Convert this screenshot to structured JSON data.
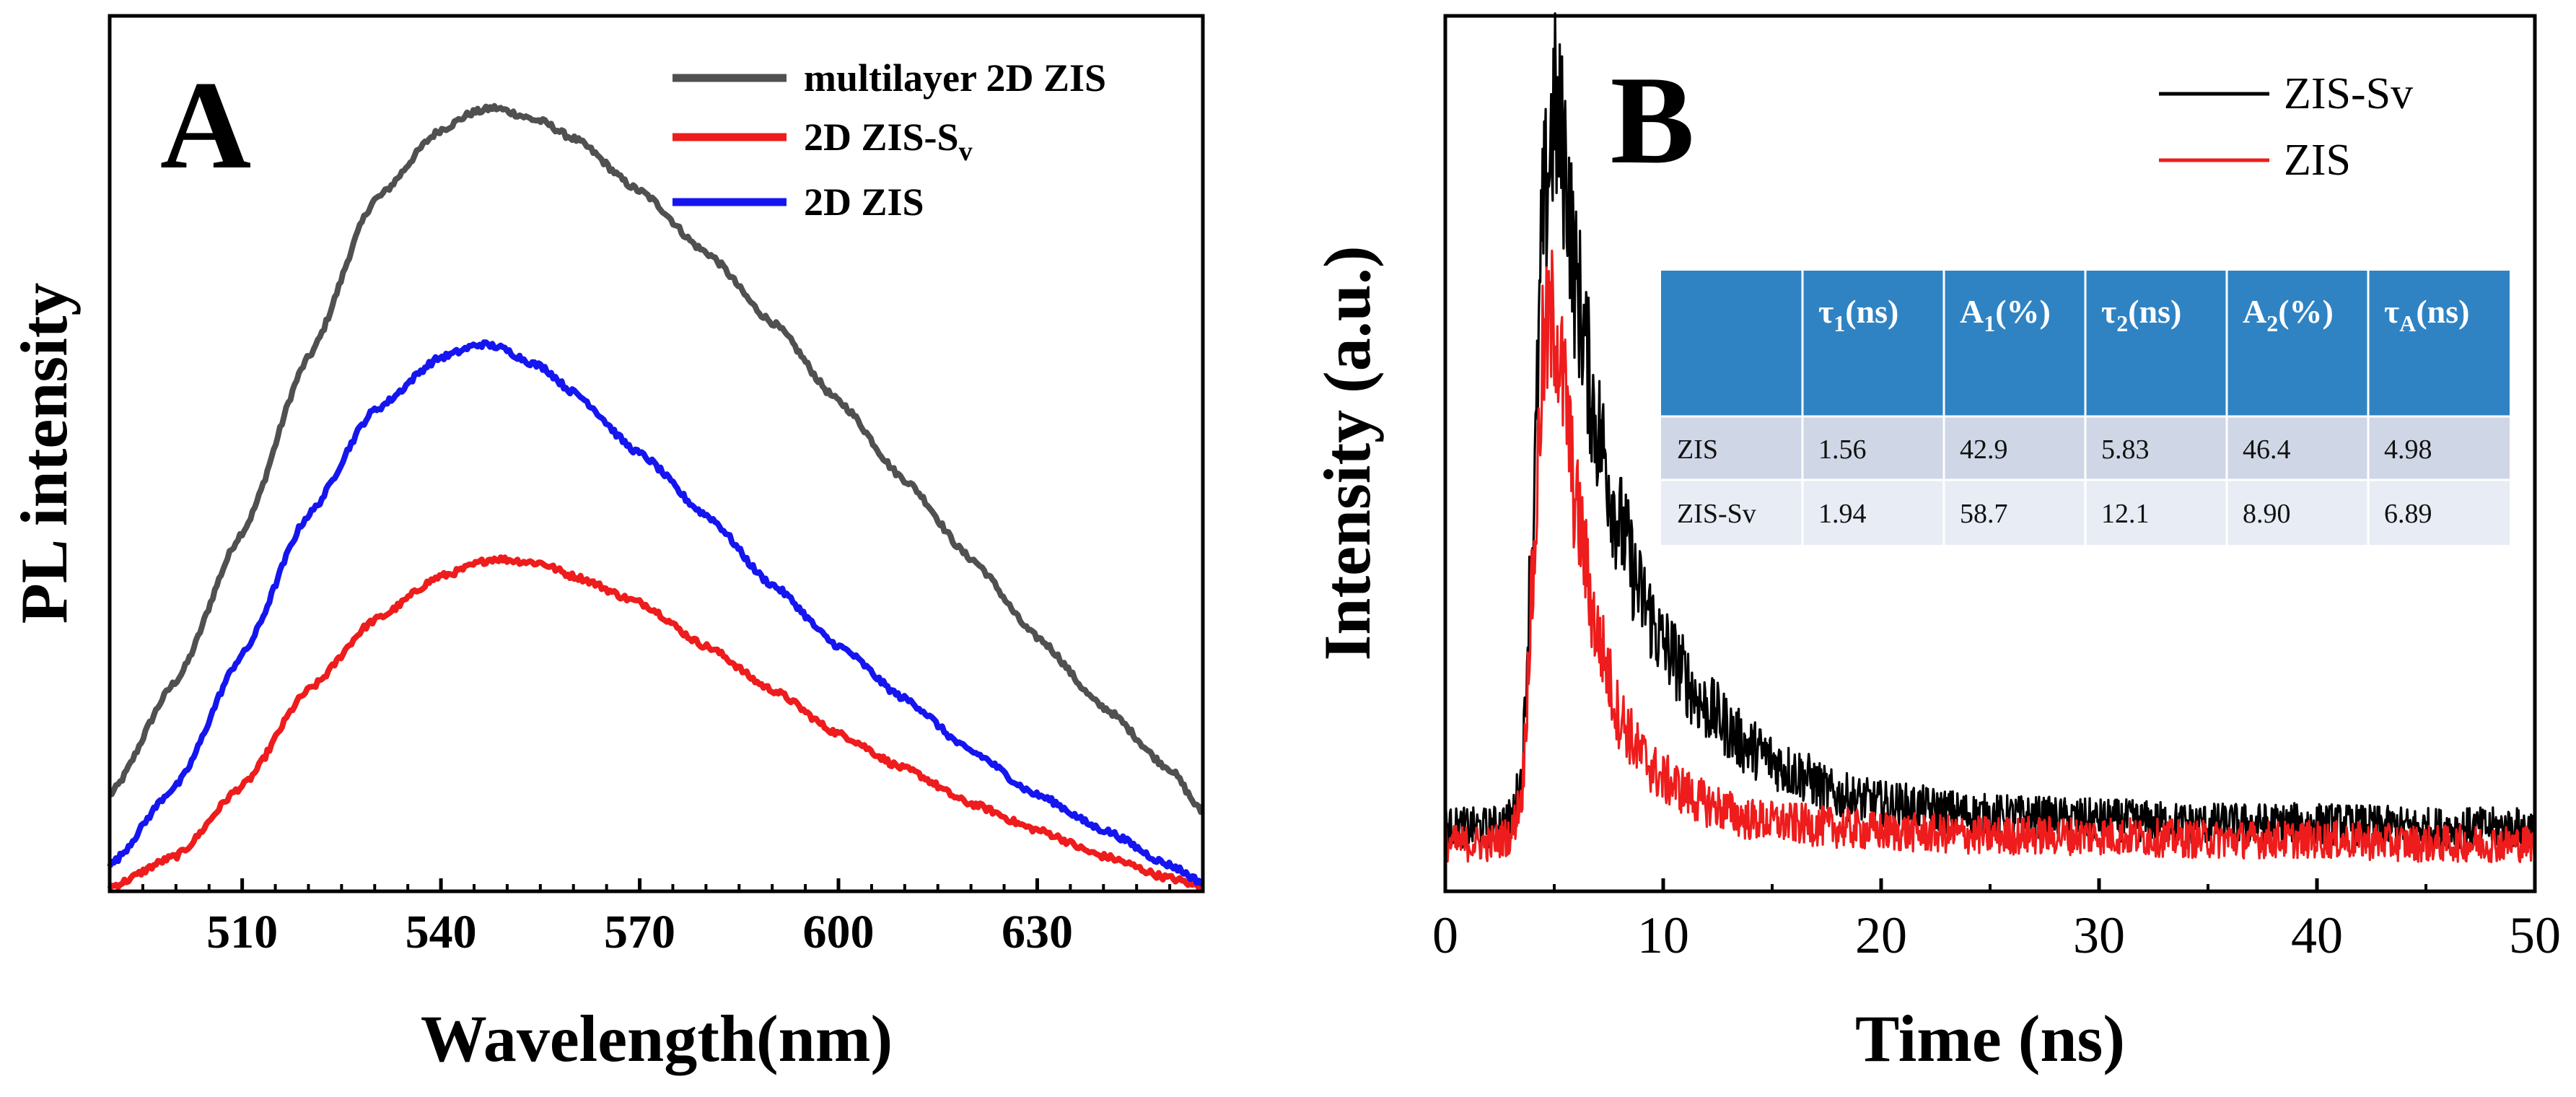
{
  "chart_data": [
    {
      "type": "line",
      "panel_label": "A",
      "xlabel": "Wavelength(nm)",
      "ylabel": "PL intensity",
      "xlim": [
        490,
        655
      ],
      "ylim": [
        0,
        100
      ],
      "xticks": [
        510,
        540,
        570,
        600,
        630
      ],
      "yticks_visible": false,
      "legend_position": "top-right",
      "series": [
        {
          "name": "multilayer 2D ZIS",
          "color": "#505050",
          "x": [
            490,
            500,
            510,
            520,
            530,
            540,
            545,
            548,
            555,
            560,
            570,
            580,
            590,
            600,
            610,
            620,
            630,
            640,
            650,
            655
          ],
          "y": [
            11,
            24,
            41,
            61,
            79,
            87,
            89,
            89.5,
            88,
            86,
            80,
            73,
            65,
            56,
            47,
            38,
            29,
            21,
            14,
            9
          ]
        },
        {
          "name": "2D ZIS-Sv",
          "name_main": "2D ZIS-S",
          "name_sub": "v",
          "color": "#ee1c1c",
          "x": [
            490,
            500,
            510,
            520,
            530,
            540,
            548,
            555,
            560,
            570,
            580,
            590,
            600,
            610,
            620,
            630,
            640,
            650,
            655
          ],
          "y": [
            0.5,
            4,
            12,
            23,
            31,
            36,
            38,
            37.5,
            36,
            33,
            28,
            23,
            18,
            14,
            10,
            7,
            4,
            1.5,
            0.5
          ]
        },
        {
          "name": "2D ZIS",
          "color": "#1515f0",
          "x": [
            490,
            500,
            510,
            520,
            530,
            540,
            546,
            548,
            555,
            560,
            570,
            580,
            590,
            600,
            610,
            620,
            630,
            640,
            650,
            655
          ],
          "y": [
            3,
            12,
            27,
            43,
            55,
            61,
            62.5,
            62.3,
            60,
            57,
            50,
            43,
            35,
            28,
            22,
            16,
            11,
            7,
            3,
            1
          ]
        }
      ]
    },
    {
      "type": "line",
      "panel_label": "B",
      "xlabel": "Time (ns)",
      "ylabel": "Intensity (a.u.)",
      "xlim": [
        0,
        50
      ],
      "ylim": [
        0,
        110
      ],
      "xticks": [
        0,
        10,
        20,
        30,
        40,
        50
      ],
      "yticks_visible": false,
      "legend_position": "top-right",
      "series": [
        {
          "name": "ZIS-Sv",
          "color": "#000000",
          "x": [
            0,
            2,
            3,
            3.5,
            4,
            4.5,
            5,
            5.5,
            6,
            7,
            8,
            9,
            10,
            12,
            14,
            16,
            18,
            20,
            25,
            30,
            35,
            40,
            45,
            50
          ],
          "y": [
            8,
            8,
            9,
            14,
            45,
            85,
            98,
            92,
            76,
            58,
            46,
            37,
            31,
            23,
            18,
            15,
            12,
            11,
            9.5,
            9,
            8.5,
            8.5,
            8,
            8
          ]
        },
        {
          "name": "ZIS",
          "color": "#ee1c1c",
          "x": [
            0,
            2,
            3,
            3.5,
            4,
            4.5,
            5,
            5.5,
            6,
            7,
            8,
            9,
            10,
            12,
            14,
            16,
            18,
            20,
            25,
            30,
            35,
            40,
            45,
            50
          ],
          "y": [
            6,
            6,
            7,
            12,
            38,
            68,
            72,
            62,
            48,
            32,
            22,
            17,
            14,
            11,
            9,
            8.5,
            8,
            7.5,
            7,
            7,
            6.5,
            6.5,
            6,
            6
          ]
        }
      ],
      "table": {
        "headers": [
          {
            "main": "τ",
            "sub": "1",
            "tail": "(ns)"
          },
          {
            "main": "A",
            "sub": "1",
            "tail": "(%)"
          },
          {
            "main": "τ",
            "sub": "2",
            "tail": "(ns)"
          },
          {
            "main": "A",
            "sub": "2",
            "tail": "(%)"
          },
          {
            "main": "τ",
            "sub": "A",
            "tail": "(ns)"
          }
        ],
        "rows": [
          {
            "label": "ZIS",
            "values": [
              "1.56",
              "42.9",
              "5.83",
              "46.4",
              "4.98"
            ]
          },
          {
            "label": "ZIS-Sv",
            "values": [
              "1.94",
              "58.7",
              "12.1",
              "8.90",
              "6.89"
            ]
          }
        ]
      }
    }
  ]
}
